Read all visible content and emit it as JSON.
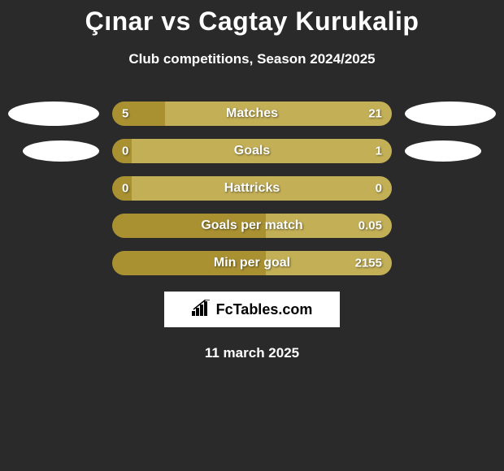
{
  "title": "Çınar vs Cagtay Kurukalip",
  "subtitle": "Club competitions, Season 2024/2025",
  "date": "11 march 2025",
  "brand": "FcTables.com",
  "colors": {
    "left": "#a99132",
    "right": "#c3af56",
    "bubble": "#ffffff",
    "bg": "#2a2a2a"
  },
  "stats": [
    {
      "label": "Matches",
      "left_value": "5",
      "right_value": "21",
      "left_pct": 19,
      "show_bubbles": true
    },
    {
      "label": "Goals",
      "left_value": "0",
      "right_value": "1",
      "left_pct": 7,
      "show_bubbles": true,
      "bubble_indent": true
    },
    {
      "label": "Hattricks",
      "left_value": "0",
      "right_value": "0",
      "left_pct": 7,
      "show_bubbles": false
    },
    {
      "label": "Goals per match",
      "left_value": "",
      "right_value": "0.05",
      "left_pct": 55,
      "show_bubbles": false
    },
    {
      "label": "Min per goal",
      "left_value": "",
      "right_value": "2155",
      "left_pct": 55,
      "show_bubbles": false
    }
  ]
}
